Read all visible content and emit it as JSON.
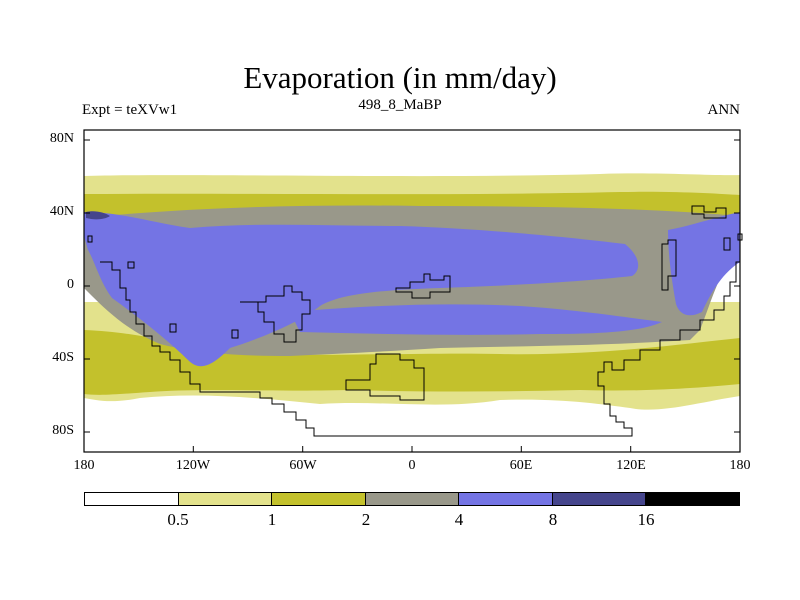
{
  "title": "Evaporation (in mm/day)",
  "experiment": "Expt = teXVw1",
  "age": "498_8_MaBP",
  "season": "ANN",
  "map": {
    "x_ticks": [
      "180",
      "120W",
      "60W",
      "0",
      "60E",
      "120E",
      "180"
    ],
    "y_ticks": [
      "80N",
      "40N",
      "0",
      "40S",
      "80S"
    ]
  },
  "colorbar": {
    "levels": [
      "0.5",
      "1",
      "2",
      "4",
      "8",
      "16"
    ],
    "colors": [
      "#ffffff",
      "#e3e28c",
      "#c3c12c",
      "#99988a",
      "#7474e4",
      "#45458c",
      "#000000"
    ]
  }
}
